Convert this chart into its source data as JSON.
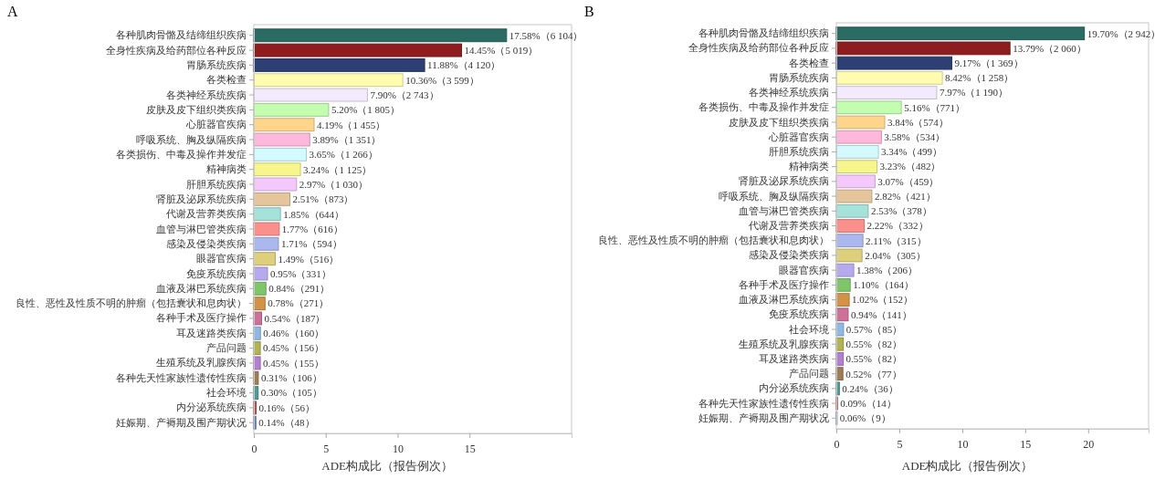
{
  "chart_data": [
    {
      "type": "bar",
      "orientation": "horizontal",
      "title": "A",
      "xlabel": "ADE构成比（报告例次）",
      "categories": [
        "各种肌肉骨骼及结缔组织疾病",
        "全身性疾病及给药部位各种反应",
        "胃肠系统疾病",
        "各类检查",
        "各类神经系统疾病",
        "皮肤及皮下组织类疾病",
        "心脏器官疾病",
        "呼吸系统、胸及纵隔疾病",
        "各类损伤、中毒及操作并发症",
        "精神病类",
        "肝胆系统疾病",
        "肾脏及泌尿系统疾病",
        "代谢及营养类疾病",
        "血管与淋巴管类疾病",
        "感染及侵染类疾病",
        "眼器官疾病",
        "免疫系统疾病",
        "血液及淋巴系统疾病",
        "良性、恶性及性质不明的肿瘤（包括囊状和息肉状）",
        "各种手术及医疗操作",
        "耳及迷路类疾病",
        "产品问题",
        "生殖系统及乳腺疾病",
        "各种先天性家族性遗传性疾病",
        "社会环境",
        "内分泌系统疾病",
        "妊娠期、产褥期及围产期状况"
      ],
      "values": [
        17.58,
        14.45,
        11.88,
        10.36,
        7.9,
        5.2,
        4.19,
        3.89,
        3.65,
        3.24,
        2.97,
        2.51,
        1.85,
        1.77,
        1.71,
        1.49,
        0.95,
        0.84,
        0.78,
        0.54,
        0.46,
        0.45,
        0.45,
        0.31,
        0.3,
        0.16,
        0.14
      ],
      "value_labels": [
        "17.58%（6 104）",
        "14.45%（5 019）",
        "11.88%（4 120）",
        "10.36%（3 599）",
        "7.90%（2 743）",
        "5.20%（1 805）",
        "4.19%（1 455）",
        "3.89%（1 351）",
        "3.65%（1 266）",
        "3.24%（1 125）",
        "2.97%（1 030）",
        "2.51%（873）",
        "1.85%（644）",
        "1.77%（616）",
        "1.71%（594）",
        "1.49%（516）",
        "0.95%（331）",
        "0.84%（291）",
        "0.78%（271）",
        "0.54%（187）",
        "0.46%（160）",
        "0.45%（156）",
        "0.45%（155）",
        "0.31%（106）",
        "0.30%（105）",
        "0.16%（56）",
        "0.14%（48）"
      ],
      "colors": [
        "#2a6b63",
        "#8e1d1f",
        "#2e3f73",
        "#fffcb0",
        "#f3eafd",
        "#c3fdb0",
        "#fed58a",
        "#fdb8dc",
        "#d3faff",
        "#f6f68c",
        "#f4c8fc",
        "#e5c59c",
        "#a4e2da",
        "#fb8f8b",
        "#aab8ee",
        "#ddcf7c",
        "#b7a9ee",
        "#7fc66b",
        "#d29347",
        "#cd7198",
        "#8db9e3",
        "#b1b451",
        "#b27fd1",
        "#a07c56",
        "#4c9c93",
        "#c05555",
        "#6b80c2"
      ],
      "xlim": [
        0,
        22.1
      ],
      "xticks": [
        0,
        5,
        10,
        15
      ],
      "grid": false
    },
    {
      "type": "bar",
      "orientation": "horizontal",
      "title": "B",
      "xlabel": "ADE构成比（报告例次）",
      "categories": [
        "各种肌肉骨骼及结缔组织疾病",
        "全身性疾病及给药部位各种反应",
        "各类检查",
        "胃肠系统疾病",
        "各类神经系统疾病",
        "各类损伤、中毒及操作并发症",
        "皮肤及皮下组织类疾病",
        "心脏器官疾病",
        "肝胆系统疾病",
        "精神病类",
        "肾脏及泌尿系统疾病",
        "呼吸系统、胸及纵隔疾病",
        "血管与淋巴管类疾病",
        "代谢及营养类疾病",
        "良性、恶性及性质不明的肿瘤（包括囊状和息肉状）",
        "感染及侵染类疾病",
        "眼器官疾病",
        "各种手术及医疗操作",
        "血液及淋巴系统疾病",
        "免疫系统疾病",
        "社会环境",
        "生殖系统及乳腺疾病",
        "耳及迷路类疾病",
        "产品问题",
        "内分泌系统疾病",
        "各种先天性家族性遗传性疾病",
        "妊娠期、产褥期及围产期状况"
      ],
      "values": [
        19.7,
        13.79,
        9.17,
        8.42,
        7.97,
        5.16,
        3.84,
        3.58,
        3.34,
        3.23,
        3.07,
        2.82,
        2.53,
        2.22,
        2.11,
        2.04,
        1.38,
        1.1,
        1.02,
        0.94,
        0.57,
        0.55,
        0.55,
        0.52,
        0.24,
        0.09,
        0.06
      ],
      "value_labels": [
        "19.70%（2 942）",
        "13.79%（2 060）",
        "9.17%（1 369）",
        "8.42%（1 258）",
        "7.97%（1 190）",
        "5.16%（771）",
        "3.84%（574）",
        "3.58%（534）",
        "3.34%（499）",
        "3.23%（482）",
        "3.07%（459）",
        "2.82%（421）",
        "2.53%（378）",
        "2.22%（332）",
        "2.11%（315）",
        "2.04%（305）",
        "1.38%（206）",
        "1.10%（164）",
        "1.02%（152）",
        "0.94%（141）",
        "0.57%（85）",
        "0.55%（82）",
        "0.55%（82）",
        "0.52%（77）",
        "0.24%（36）",
        "0.09%（14）",
        "0.06%（9）"
      ],
      "colors": [
        "#2a6b63",
        "#8e1d1f",
        "#2e3f73",
        "#fffcb0",
        "#f3eafd",
        "#c3fdb0",
        "#fed58a",
        "#fdb8dc",
        "#d3faff",
        "#f6f68c",
        "#f4c8fc",
        "#e5c59c",
        "#a4e2da",
        "#fb8f8b",
        "#aab8ee",
        "#ddcf7c",
        "#b7a9ee",
        "#7fc66b",
        "#d29347",
        "#cd7198",
        "#8db9e3",
        "#b1b451",
        "#b27fd1",
        "#a07c56",
        "#4c9c93",
        "#c05555",
        "#6b80c2"
      ],
      "xlim": [
        0,
        24.8
      ],
      "xticks": [
        0,
        5,
        10,
        15,
        20
      ],
      "grid": false
    }
  ]
}
